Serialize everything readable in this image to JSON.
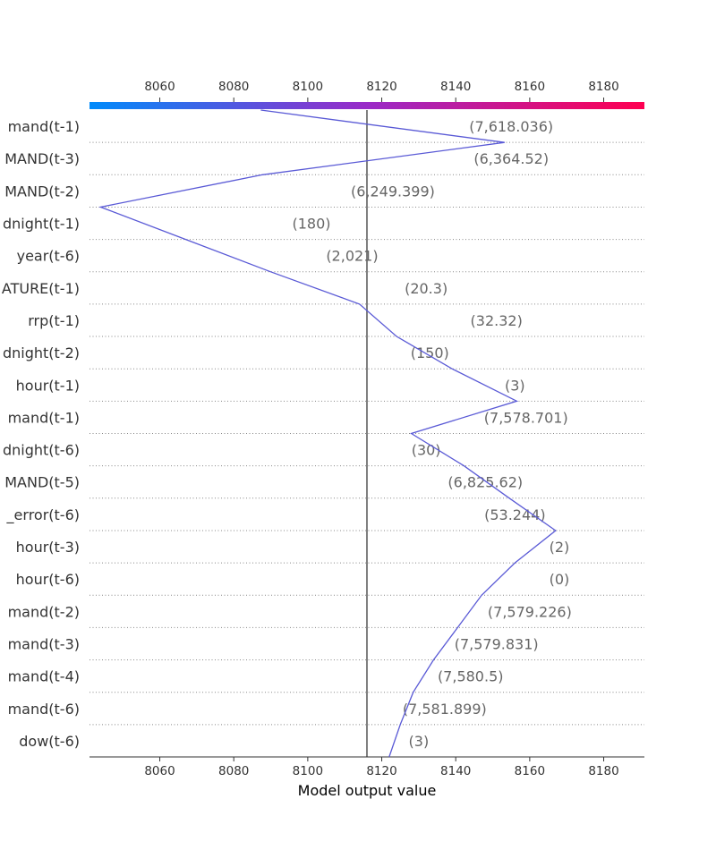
{
  "chart_data": {
    "type": "line",
    "title": "",
    "xlabel": "Model output value",
    "ylabel": "",
    "xlim": [
      8041,
      8191
    ],
    "xticks": [
      8060,
      8080,
      8100,
      8120,
      8140,
      8160,
      8180
    ],
    "base_value": 8116,
    "colorbar": {
      "from": "#008bfb",
      "to": "#ff0051"
    },
    "line_color": "#5a5ad6",
    "grid": "dotted horizontal separators",
    "features": [
      "mand(t-1)",
      "MAND(t-3)",
      "MAND(t-2)",
      "dnight(t-1)",
      "year(t-6)",
      "ATURE(t-1)",
      "rrp(t-1)",
      "dnight(t-2)",
      "hour(t-1)",
      "mand(t-1)",
      "dnight(t-6)",
      "MAND(t-5)",
      "_error(t-6)",
      "hour(t-3)",
      "hour(t-6)",
      "mand(t-2)",
      "mand(t-3)",
      "mand(t-4)",
      "mand(t-6)",
      "dow(t-6)"
    ],
    "feature_values": [
      "(7,618.036)",
      "(6,364.52)",
      "(6,249.399)",
      "(180)",
      "(2,021)",
      "(20.3)",
      "(32.32)",
      "(150)",
      "(3)",
      "(7,578.701)",
      "(30)",
      "(6,825.62)",
      "(53.244)",
      "(2)",
      "(0)",
      "(7,579.226)",
      "(7,579.831)",
      "(7,580.5)",
      "(7,581.899)",
      "(3)"
    ],
    "boundary_values": [
      8087.3,
      8153.2,
      8087.8,
      8044.0,
      8067.0,
      8090.0,
      8114.0,
      8124.0,
      8139.0,
      8156.5,
      8128.0,
      8142.2,
      8154.5,
      8167.0,
      8156.0,
      8147.0,
      8140.5,
      8134.0,
      8128.5,
      8125.0,
      8122.0
    ],
    "label_values": [
      8155,
      8155,
      8123,
      8101,
      8112,
      8132,
      8151,
      8133,
      8156,
      8159,
      8132,
      8148,
      8156,
      8168,
      8168,
      8160,
      8151,
      8144,
      8137,
      8130
    ]
  }
}
